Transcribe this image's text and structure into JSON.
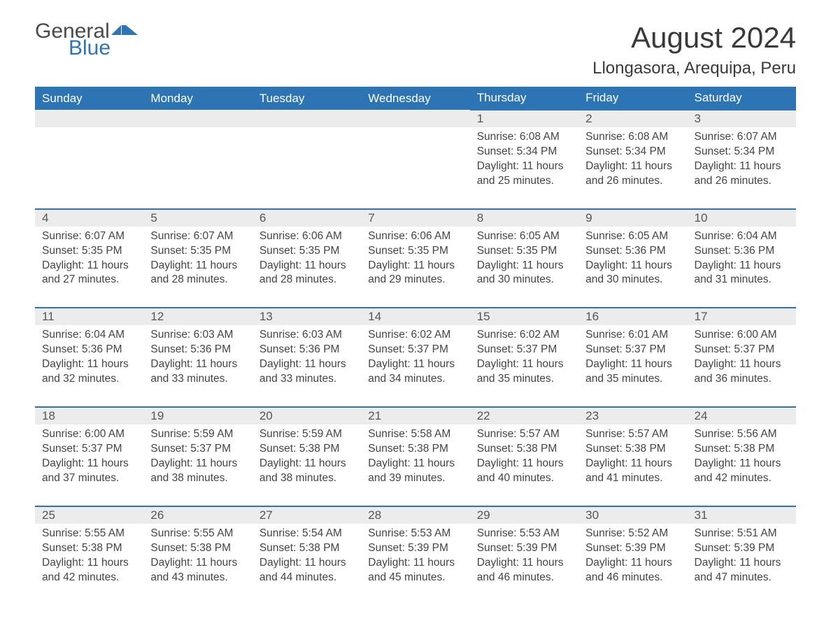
{
  "logo": {
    "text1": "General",
    "text2": "Blue",
    "shape_color": "#2d74b5"
  },
  "title": "August 2024",
  "location": "Llongasora, Arequipa, Peru",
  "colors": {
    "header_bg": "#2d74b5",
    "header_text": "#ffffff",
    "daynum_bg": "#ececec",
    "daynum_border": "#2d74b5",
    "text": "#444444",
    "background": "#ffffff"
  },
  "day_headers": [
    "Sunday",
    "Monday",
    "Tuesday",
    "Wednesday",
    "Thursday",
    "Friday",
    "Saturday"
  ],
  "weeks": [
    [
      null,
      null,
      null,
      null,
      {
        "n": "1",
        "sunrise": "6:08 AM",
        "sunset": "5:34 PM",
        "daylight": "11 hours and 25 minutes."
      },
      {
        "n": "2",
        "sunrise": "6:08 AM",
        "sunset": "5:34 PM",
        "daylight": "11 hours and 26 minutes."
      },
      {
        "n": "3",
        "sunrise": "6:07 AM",
        "sunset": "5:34 PM",
        "daylight": "11 hours and 26 minutes."
      }
    ],
    [
      {
        "n": "4",
        "sunrise": "6:07 AM",
        "sunset": "5:35 PM",
        "daylight": "11 hours and 27 minutes."
      },
      {
        "n": "5",
        "sunrise": "6:07 AM",
        "sunset": "5:35 PM",
        "daylight": "11 hours and 28 minutes."
      },
      {
        "n": "6",
        "sunrise": "6:06 AM",
        "sunset": "5:35 PM",
        "daylight": "11 hours and 28 minutes."
      },
      {
        "n": "7",
        "sunrise": "6:06 AM",
        "sunset": "5:35 PM",
        "daylight": "11 hours and 29 minutes."
      },
      {
        "n": "8",
        "sunrise": "6:05 AM",
        "sunset": "5:35 PM",
        "daylight": "11 hours and 30 minutes."
      },
      {
        "n": "9",
        "sunrise": "6:05 AM",
        "sunset": "5:36 PM",
        "daylight": "11 hours and 30 minutes."
      },
      {
        "n": "10",
        "sunrise": "6:04 AM",
        "sunset": "5:36 PM",
        "daylight": "11 hours and 31 minutes."
      }
    ],
    [
      {
        "n": "11",
        "sunrise": "6:04 AM",
        "sunset": "5:36 PM",
        "daylight": "11 hours and 32 minutes."
      },
      {
        "n": "12",
        "sunrise": "6:03 AM",
        "sunset": "5:36 PM",
        "daylight": "11 hours and 33 minutes."
      },
      {
        "n": "13",
        "sunrise": "6:03 AM",
        "sunset": "5:36 PM",
        "daylight": "11 hours and 33 minutes."
      },
      {
        "n": "14",
        "sunrise": "6:02 AM",
        "sunset": "5:37 PM",
        "daylight": "11 hours and 34 minutes."
      },
      {
        "n": "15",
        "sunrise": "6:02 AM",
        "sunset": "5:37 PM",
        "daylight": "11 hours and 35 minutes."
      },
      {
        "n": "16",
        "sunrise": "6:01 AM",
        "sunset": "5:37 PM",
        "daylight": "11 hours and 35 minutes."
      },
      {
        "n": "17",
        "sunrise": "6:00 AM",
        "sunset": "5:37 PM",
        "daylight": "11 hours and 36 minutes."
      }
    ],
    [
      {
        "n": "18",
        "sunrise": "6:00 AM",
        "sunset": "5:37 PM",
        "daylight": "11 hours and 37 minutes."
      },
      {
        "n": "19",
        "sunrise": "5:59 AM",
        "sunset": "5:37 PM",
        "daylight": "11 hours and 38 minutes."
      },
      {
        "n": "20",
        "sunrise": "5:59 AM",
        "sunset": "5:38 PM",
        "daylight": "11 hours and 38 minutes."
      },
      {
        "n": "21",
        "sunrise": "5:58 AM",
        "sunset": "5:38 PM",
        "daylight": "11 hours and 39 minutes."
      },
      {
        "n": "22",
        "sunrise": "5:57 AM",
        "sunset": "5:38 PM",
        "daylight": "11 hours and 40 minutes."
      },
      {
        "n": "23",
        "sunrise": "5:57 AM",
        "sunset": "5:38 PM",
        "daylight": "11 hours and 41 minutes."
      },
      {
        "n": "24",
        "sunrise": "5:56 AM",
        "sunset": "5:38 PM",
        "daylight": "11 hours and 42 minutes."
      }
    ],
    [
      {
        "n": "25",
        "sunrise": "5:55 AM",
        "sunset": "5:38 PM",
        "daylight": "11 hours and 42 minutes."
      },
      {
        "n": "26",
        "sunrise": "5:55 AM",
        "sunset": "5:38 PM",
        "daylight": "11 hours and 43 minutes."
      },
      {
        "n": "27",
        "sunrise": "5:54 AM",
        "sunset": "5:38 PM",
        "daylight": "11 hours and 44 minutes."
      },
      {
        "n": "28",
        "sunrise": "5:53 AM",
        "sunset": "5:39 PM",
        "daylight": "11 hours and 45 minutes."
      },
      {
        "n": "29",
        "sunrise": "5:53 AM",
        "sunset": "5:39 PM",
        "daylight": "11 hours and 46 minutes."
      },
      {
        "n": "30",
        "sunrise": "5:52 AM",
        "sunset": "5:39 PM",
        "daylight": "11 hours and 46 minutes."
      },
      {
        "n": "31",
        "sunrise": "5:51 AM",
        "sunset": "5:39 PM",
        "daylight": "11 hours and 47 minutes."
      }
    ]
  ],
  "labels": {
    "sunrise": "Sunrise: ",
    "sunset": "Sunset: ",
    "daylight": "Daylight: "
  }
}
